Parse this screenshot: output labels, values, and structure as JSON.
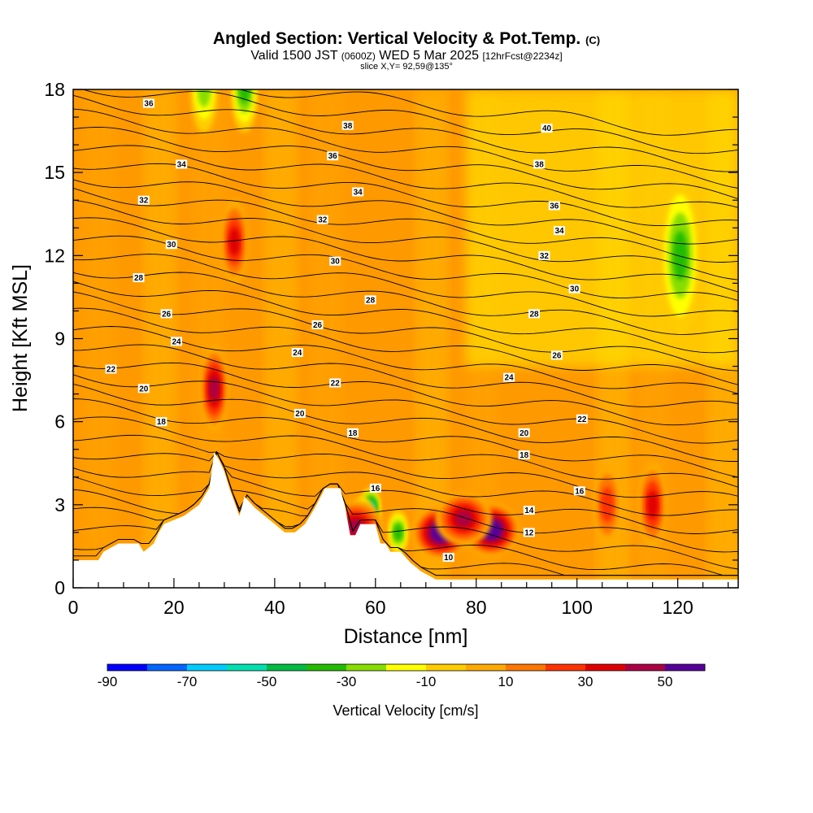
{
  "header": {
    "title_main": "Angled Section: Vertical Velocity & Pot.Temp.",
    "title_unit": "(C)",
    "valid_prefix": "Valid 1500 JST",
    "valid_utc": "(0600Z)",
    "valid_date": "WED 5 Mar 2025",
    "forecast": "[12hrFcst@2234z]",
    "slice": "slice X,Y= 92,59@135°"
  },
  "colors": {
    "background_fill": "#ff9900",
    "terrain": "#ffffff",
    "contour": "#000000"
  },
  "chart_data": {
    "type": "heatmap",
    "title": "Angled Section: Vertical Velocity & Pot.Temp. (C)",
    "xlabel": "Distance [nm]",
    "ylabel": "Height [Kft MSL]",
    "xlim": [
      0,
      132
    ],
    "ylim": [
      0,
      18
    ],
    "x_ticks": [
      0,
      20,
      40,
      60,
      80,
      100,
      120
    ],
    "y_ticks": [
      0,
      3,
      6,
      9,
      12,
      15,
      18
    ],
    "grid": false,
    "colorbar": {
      "title": "Vertical Velocity [cm/s]",
      "levels": [
        -90,
        -80,
        -70,
        -60,
        -50,
        -40,
        -30,
        -20,
        -10,
        0,
        10,
        20,
        30,
        40,
        50,
        60
      ],
      "tick_labels": [
        -90,
        -70,
        -50,
        -30,
        -10,
        10,
        30,
        50
      ],
      "colors": [
        "#0000ff",
        "#0066ff",
        "#00ccff",
        "#00e0b0",
        "#00bb44",
        "#22bb00",
        "#88dd00",
        "#ffff00",
        "#ffcc00",
        "#ffaa00",
        "#ff7700",
        "#ff3300",
        "#e00000",
        "#aa0044",
        "#550099"
      ]
    },
    "velocity_features": [
      {
        "x": 120.5,
        "y": 12.0,
        "value": -25
      },
      {
        "x": 34.0,
        "y": 18.0,
        "value": -25
      },
      {
        "x": 26.0,
        "y": 18.0,
        "value": -20
      },
      {
        "x": 32.0,
        "y": 12.5,
        "value": 30
      },
      {
        "x": 28.0,
        "y": 7.2,
        "value": 35
      },
      {
        "x": 73.0,
        "y": 2.0,
        "value": 55
      },
      {
        "x": 83.0,
        "y": 2.1,
        "value": 55
      },
      {
        "x": 77.5,
        "y": 2.5,
        "value": 35
      },
      {
        "x": 59.0,
        "y": 2.8,
        "value": -60
      },
      {
        "x": 57.5,
        "y": 2.5,
        "value": -40
      },
      {
        "x": 64.5,
        "y": 2.0,
        "value": -30
      },
      {
        "x": 106.0,
        "y": 3.0,
        "value": 15
      },
      {
        "x": 115.0,
        "y": 3.0,
        "value": 25
      },
      {
        "x": 56.0,
        "y": 2.2,
        "value": 40
      }
    ],
    "terrain_profile": [
      {
        "x": 0,
        "y": 1.0
      },
      {
        "x": 5,
        "y": 1.0
      },
      {
        "x": 6,
        "y": 1.3
      },
      {
        "x": 9,
        "y": 1.6
      },
      {
        "x": 13,
        "y": 1.6
      },
      {
        "x": 14,
        "y": 1.3
      },
      {
        "x": 16,
        "y": 1.6
      },
      {
        "x": 17,
        "y": 2.0
      },
      {
        "x": 18,
        "y": 2.3
      },
      {
        "x": 22,
        "y": 2.6
      },
      {
        "x": 25,
        "y": 3.0
      },
      {
        "x": 27,
        "y": 3.6
      },
      {
        "x": 28,
        "y": 4.9
      },
      {
        "x": 29,
        "y": 4.6
      },
      {
        "x": 30,
        "y": 4.2
      },
      {
        "x": 31,
        "y": 3.6
      },
      {
        "x": 33,
        "y": 2.6
      },
      {
        "x": 34,
        "y": 3.3
      },
      {
        "x": 36,
        "y": 2.9
      },
      {
        "x": 38,
        "y": 2.6
      },
      {
        "x": 40,
        "y": 2.3
      },
      {
        "x": 42,
        "y": 2.0
      },
      {
        "x": 44,
        "y": 2.0
      },
      {
        "x": 46,
        "y": 2.3
      },
      {
        "x": 48,
        "y": 2.9
      },
      {
        "x": 50,
        "y": 3.6
      },
      {
        "x": 53,
        "y": 3.6
      },
      {
        "x": 54,
        "y": 2.9
      },
      {
        "x": 55,
        "y": 1.9
      },
      {
        "x": 56,
        "y": 1.9
      },
      {
        "x": 57,
        "y": 2.3
      },
      {
        "x": 60,
        "y": 2.3
      },
      {
        "x": 61,
        "y": 1.6
      },
      {
        "x": 62,
        "y": 1.6
      },
      {
        "x": 63,
        "y": 1.3
      },
      {
        "x": 65,
        "y": 1.3
      },
      {
        "x": 67,
        "y": 0.9
      },
      {
        "x": 69,
        "y": 0.6
      },
      {
        "x": 72,
        "y": 0.3
      },
      {
        "x": 132,
        "y": 0.3
      }
    ],
    "theta_contours": [
      {
        "value": 10,
        "label": "10",
        "label_x": 74.5,
        "label_y": 1.1
      },
      {
        "value": 12,
        "label": "12",
        "label_x": 90.5,
        "label_y": 2.0
      },
      {
        "value": 14,
        "label": "14",
        "label_x": 90.5,
        "label_y": 2.8
      },
      {
        "value": 16,
        "label": "16",
        "label_x": 100.5,
        "label_y": 3.5
      },
      {
        "value": 16,
        "label": "16",
        "label_x": 60.0,
        "label_y": 3.6
      },
      {
        "value": 18,
        "label": "18",
        "label_x": 17.5,
        "label_y": 6.0
      },
      {
        "value": 18,
        "label": "18",
        "label_x": 55.5,
        "label_y": 5.6
      },
      {
        "value": 18,
        "label": "18",
        "label_x": 89.5,
        "label_y": 4.8
      },
      {
        "value": 20,
        "label": "20",
        "label_x": 14.0,
        "label_y": 7.2
      },
      {
        "value": 20,
        "label": "20",
        "label_x": 45.0,
        "label_y": 6.3
      },
      {
        "value": 20,
        "label": "20",
        "label_x": 89.5,
        "label_y": 5.6
      },
      {
        "value": 22,
        "label": "22",
        "label_x": 7.5,
        "label_y": 7.9
      },
      {
        "value": 22,
        "label": "22",
        "label_x": 52.0,
        "label_y": 7.4
      },
      {
        "value": 22,
        "label": "22",
        "label_x": 101.0,
        "label_y": 6.1
      },
      {
        "value": 24,
        "label": "24",
        "label_x": 20.5,
        "label_y": 8.9
      },
      {
        "value": 24,
        "label": "24",
        "label_x": 44.5,
        "label_y": 8.5
      },
      {
        "value": 24,
        "label": "24",
        "label_x": 86.5,
        "label_y": 7.6
      },
      {
        "value": 26,
        "label": "26",
        "label_x": 18.5,
        "label_y": 9.9
      },
      {
        "value": 26,
        "label": "26",
        "label_x": 48.5,
        "label_y": 9.5
      },
      {
        "value": 26,
        "label": "26",
        "label_x": 96.0,
        "label_y": 8.4
      },
      {
        "value": 28,
        "label": "28",
        "label_x": 13.0,
        "label_y": 11.2
      },
      {
        "value": 28,
        "label": "28",
        "label_x": 59.0,
        "label_y": 10.4
      },
      {
        "value": 28,
        "label": "28",
        "label_x": 91.5,
        "label_y": 9.9
      },
      {
        "value": 30,
        "label": "30",
        "label_x": 19.5,
        "label_y": 12.4
      },
      {
        "value": 30,
        "label": "30",
        "label_x": 52.0,
        "label_y": 11.8
      },
      {
        "value": 30,
        "label": "30",
        "label_x": 99.5,
        "label_y": 10.8
      },
      {
        "value": 32,
        "label": "32",
        "label_x": 14.0,
        "label_y": 14.0
      },
      {
        "value": 32,
        "label": "32",
        "label_x": 49.5,
        "label_y": 13.3
      },
      {
        "value": 32,
        "label": "32",
        "label_x": 93.5,
        "label_y": 12.0
      },
      {
        "value": 34,
        "label": "34",
        "label_x": 21.5,
        "label_y": 15.3
      },
      {
        "value": 34,
        "label": "34",
        "label_x": 56.5,
        "label_y": 14.3
      },
      {
        "value": 34,
        "label": "34",
        "label_x": 96.5,
        "label_y": 12.9
      },
      {
        "value": 36,
        "label": "36",
        "label_x": 15.0,
        "label_y": 17.5
      },
      {
        "value": 36,
        "label": "36",
        "label_x": 51.5,
        "label_y": 15.6
      },
      {
        "value": 36,
        "label": "36",
        "label_x": 95.5,
        "label_y": 13.8
      },
      {
        "value": 38,
        "label": "38",
        "label_x": 54.5,
        "label_y": 16.7
      },
      {
        "value": 38,
        "label": "38",
        "label_x": 92.5,
        "label_y": 15.3
      },
      {
        "value": 40,
        "label": "40",
        "label_x": 94.0,
        "label_y": 16.6
      }
    ]
  }
}
